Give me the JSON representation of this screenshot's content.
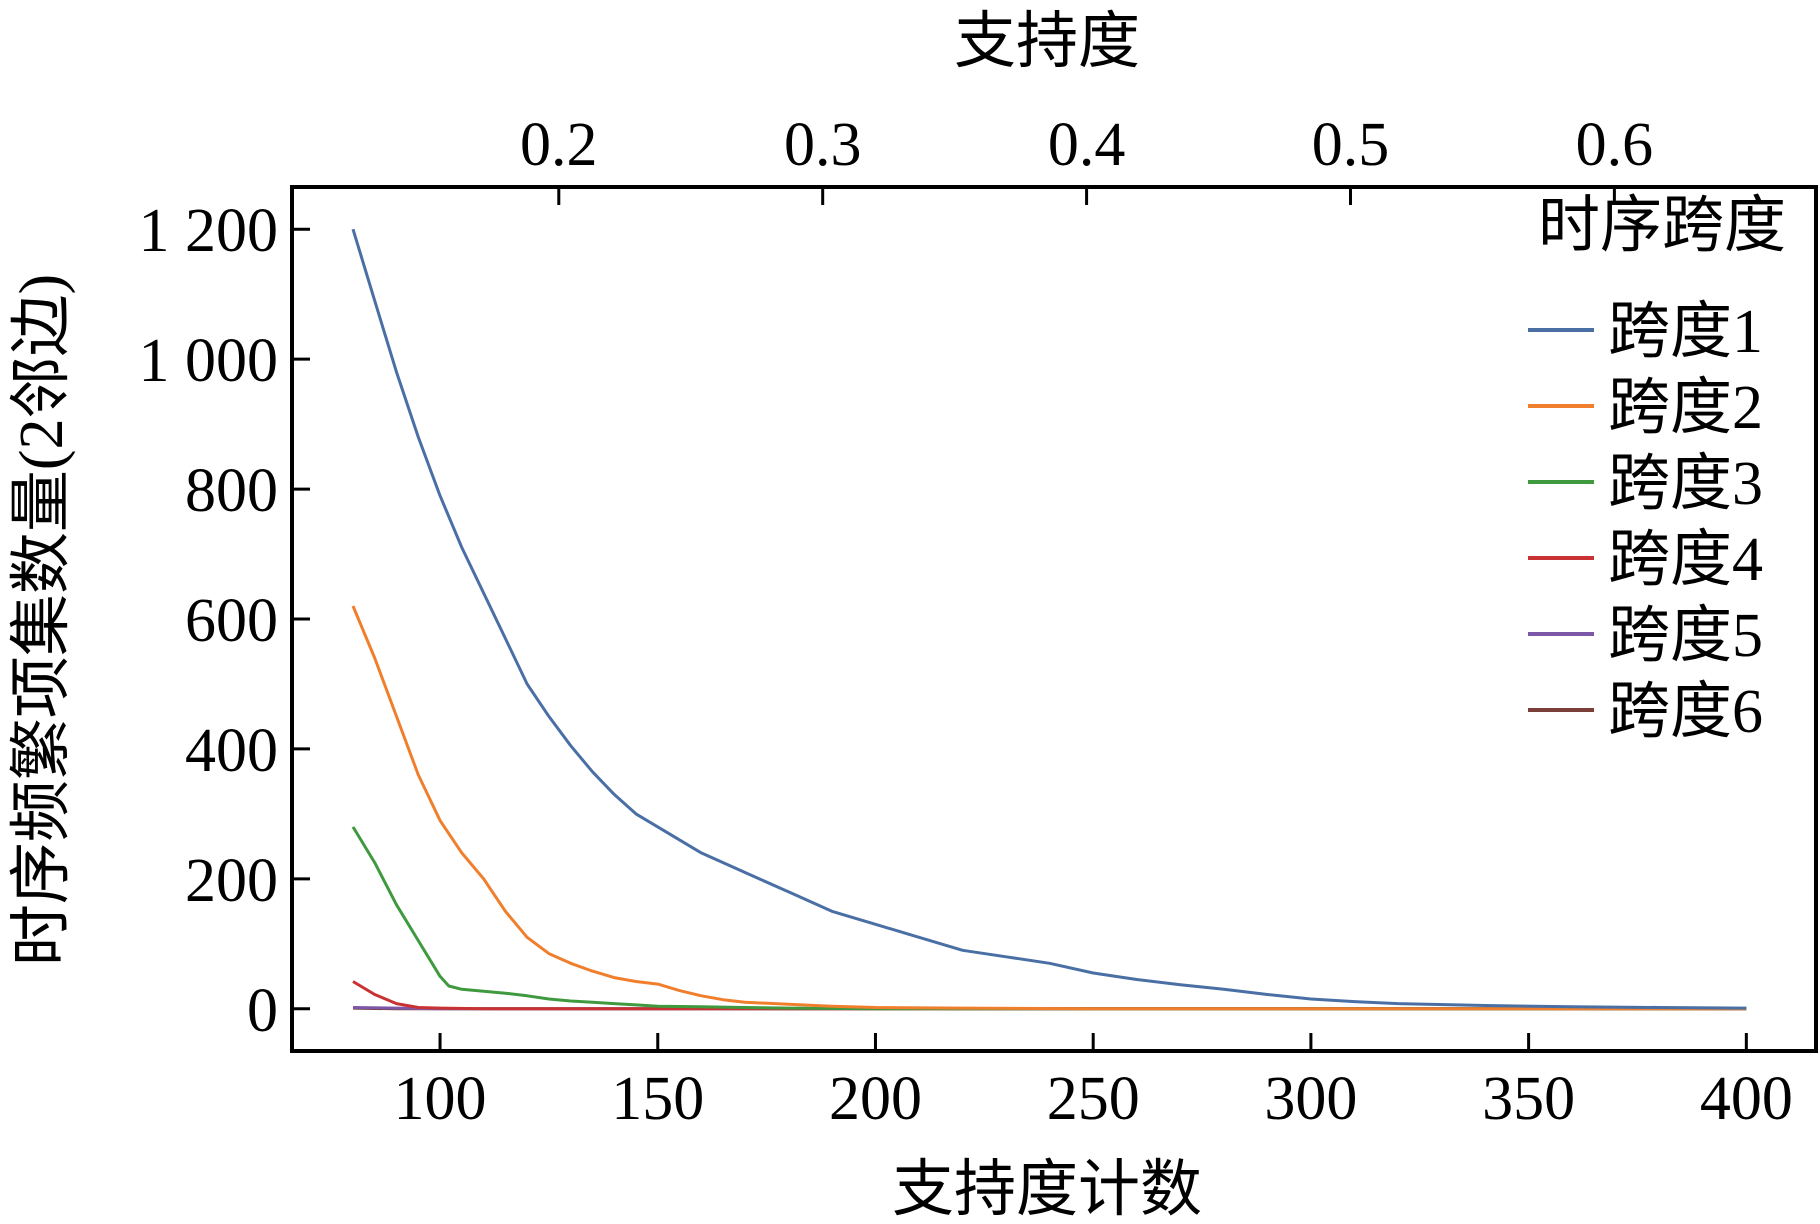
{
  "chart_data": {
    "type": "line",
    "xlabel": "支持度计数",
    "ylabel": "时序频繁项集数量(2邻边)",
    "x2label": "支持度",
    "xlim": [
      66,
      416
    ],
    "ylim": [
      -65,
      1265
    ],
    "x_ticks": [
      100,
      150,
      200,
      250,
      300,
      350,
      400
    ],
    "x_tick_labels": [
      "100",
      "150",
      "200",
      "250",
      "300",
      "350",
      "400"
    ],
    "y_ticks": [
      0,
      200,
      400,
      600,
      800,
      1000,
      1200
    ],
    "y_tick_labels": [
      "0",
      "200",
      "400",
      "600",
      "800",
      "1 000",
      "1 200"
    ],
    "x2_ticks": [
      0.2,
      0.3,
      0.4,
      0.5,
      0.6
    ],
    "x2_tick_labels": [
      "0.2",
      "0.3",
      "0.4",
      "0.5",
      "0.6"
    ],
    "x2_scale": {
      "x_at": [
        80,
        400
      ],
      "support_at": [
        0.122,
        0.65
      ]
    },
    "grid": false,
    "legend": {
      "title": "时序跨度",
      "position": "top-right"
    },
    "series": [
      {
        "name": "跨度1",
        "color": "#4a6fa5",
        "x": [
          80,
          85,
          90,
          95,
          100,
          105,
          110,
          115,
          120,
          125,
          130,
          135,
          140,
          145,
          150,
          160,
          170,
          180,
          190,
          200,
          210,
          220,
          230,
          240,
          250,
          260,
          270,
          280,
          290,
          300,
          310,
          320,
          340,
          360,
          380,
          400
        ],
        "y": [
          1200,
          1090,
          980,
          880,
          790,
          710,
          640,
          570,
          500,
          450,
          405,
          365,
          330,
          300,
          280,
          240,
          210,
          180,
          150,
          130,
          110,
          90,
          80,
          70,
          55,
          45,
          37,
          30,
          22,
          15,
          11,
          8,
          5,
          3,
          2,
          1
        ]
      },
      {
        "name": "跨度2",
        "color": "#f07f2d",
        "x": [
          80,
          85,
          90,
          95,
          100,
          105,
          110,
          115,
          120,
          125,
          130,
          135,
          140,
          145,
          150,
          155,
          160,
          165,
          170,
          180,
          190,
          200,
          220,
          250,
          300,
          350,
          400
        ],
        "y": [
          620,
          540,
          450,
          360,
          290,
          240,
          200,
          150,
          110,
          85,
          70,
          58,
          48,
          42,
          38,
          28,
          20,
          14,
          10,
          7,
          4,
          2,
          1,
          0,
          0,
          0,
          0
        ]
      },
      {
        "name": "跨度3",
        "color": "#3f9a3f",
        "x": [
          80,
          85,
          90,
          95,
          100,
          102,
          105,
          110,
          115,
          120,
          125,
          130,
          135,
          140,
          145,
          150,
          160,
          170,
          180,
          200,
          250,
          300,
          350,
          400
        ],
        "y": [
          280,
          225,
          160,
          105,
          50,
          35,
          30,
          27,
          24,
          20,
          15,
          12,
          10,
          8,
          6,
          4,
          3,
          2,
          1,
          0,
          0,
          0,
          0,
          0
        ]
      },
      {
        "name": "跨度4",
        "color": "#c83232",
        "x": [
          80,
          85,
          90,
          95,
          100,
          110,
          150,
          200,
          250,
          300,
          350,
          400
        ],
        "y": [
          42,
          22,
          8,
          2,
          1,
          0,
          0,
          0,
          0,
          0,
          0,
          0
        ]
      },
      {
        "name": "跨度5",
        "color": "#7e58a8",
        "x": [
          80,
          90,
          100,
          150,
          200,
          250,
          300,
          350,
          400
        ],
        "y": [
          2,
          1,
          0,
          0,
          0,
          0,
          0,
          0,
          0
        ]
      },
      {
        "name": "跨度6",
        "color": "#7a3f38",
        "x": [
          80,
          90,
          100,
          150,
          200,
          250,
          300,
          350,
          400
        ],
        "y": [
          1,
          0,
          0,
          0,
          0,
          0,
          0,
          0,
          0
        ]
      }
    ]
  }
}
